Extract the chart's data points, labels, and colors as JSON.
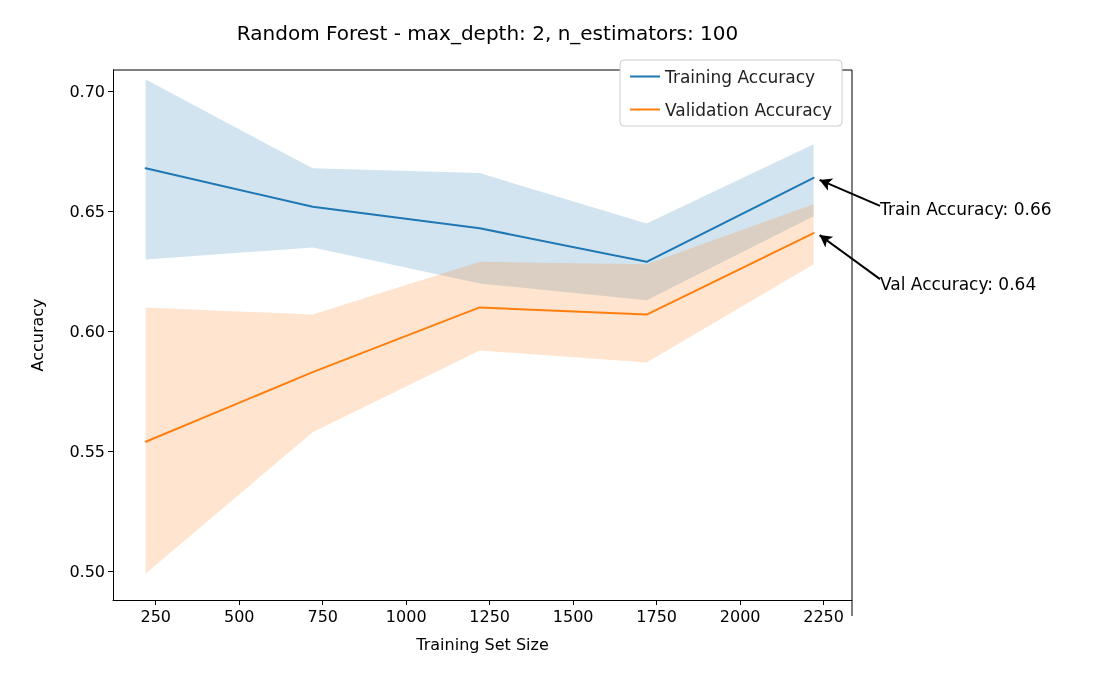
{
  "chart_data": {
    "type": "line",
    "title": "Random Forest - max_depth: 2, n_estimators: 100",
    "xlabel": "Training Set Size",
    "ylabel": "Accuracy",
    "x": [
      220,
      720,
      1220,
      1720,
      2220
    ],
    "series": [
      {
        "name": "Training Accuracy",
        "color": "#1f77b4",
        "values": [
          0.668,
          0.652,
          0.643,
          0.629,
          0.664
        ],
        "lower": [
          0.63,
          0.635,
          0.62,
          0.613,
          0.648
        ],
        "upper": [
          0.705,
          0.668,
          0.666,
          0.645,
          0.678
        ]
      },
      {
        "name": "Validation Accuracy",
        "color": "#ff7f0e",
        "values": [
          0.554,
          0.583,
          0.61,
          0.607,
          0.641
        ],
        "lower": [
          0.499,
          0.558,
          0.592,
          0.587,
          0.628
        ],
        "upper": [
          0.61,
          0.607,
          0.629,
          0.628,
          0.653
        ]
      }
    ],
    "xlim": [
      122,
      2335
    ],
    "xticks": [
      250,
      500,
      750,
      1000,
      1250,
      1500,
      1750,
      2000,
      2250
    ],
    "ylim": [
      0.488,
      0.709
    ],
    "yticks": [
      {
        "value": 0.5,
        "label": "0.50"
      },
      {
        "value": 0.55,
        "label": "0.55"
      },
      {
        "value": 0.6,
        "label": "0.60"
      },
      {
        "value": 0.65,
        "label": "0.65"
      },
      {
        "value": 0.7,
        "label": "0.70"
      }
    ],
    "grid": false,
    "legend": "top right",
    "annotations": [
      {
        "text": "Train Accuracy: 0.66",
        "x": 2220,
        "y": 0.664
      },
      {
        "text": "Val Accuracy: 0.64",
        "x": 2220,
        "y": 0.641
      }
    ]
  }
}
